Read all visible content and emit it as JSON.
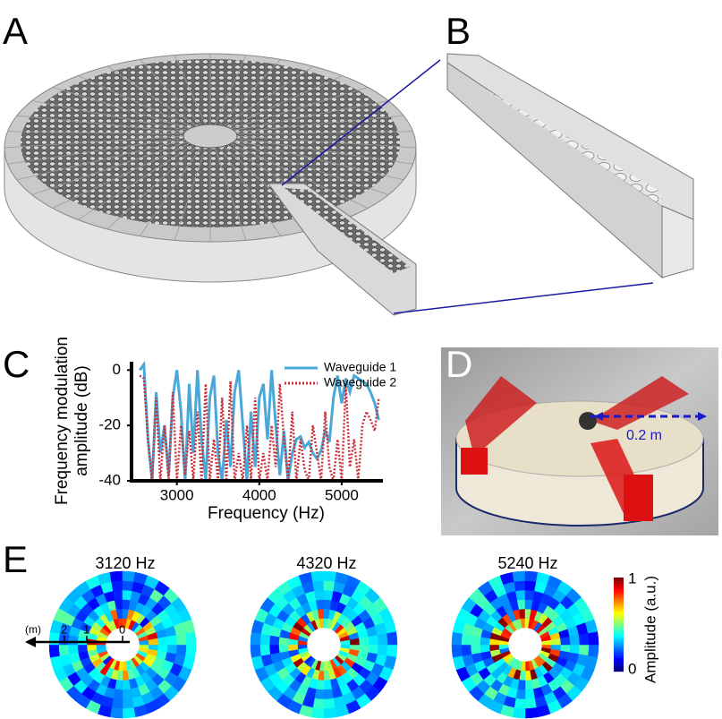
{
  "panel_labels": [
    "A",
    "B",
    "C",
    "D",
    "E"
  ],
  "chart_data": {
    "type": "line",
    "ylabel_lines": [
      "Frequency modulation",
      "amplitude (dB)"
    ],
    "xlabel": "Frequency (Hz)",
    "x": [
      2550,
      2600,
      2650,
      2700,
      2750,
      2800,
      2850,
      2900,
      2950,
      3000,
      3050,
      3100,
      3150,
      3200,
      3250,
      3300,
      3350,
      3400,
      3450,
      3500,
      3550,
      3600,
      3650,
      3700,
      3750,
      3800,
      3850,
      3900,
      3950,
      4000,
      4050,
      4100,
      4150,
      4200,
      4250,
      4300,
      4350,
      4400,
      4450,
      4500,
      4550,
      4600,
      4650,
      4700,
      4750,
      4800,
      4850,
      4900,
      4950,
      5000,
      5050,
      5100,
      5150,
      5200,
      5250,
      5300,
      5350,
      5400,
      5450
    ],
    "series": [
      {
        "name": "Waveguide 1",
        "color": "#4aa8d8",
        "style": "solid",
        "values": [
          0,
          2,
          -25,
          -40,
          -8,
          -30,
          -20,
          -38,
          -10,
          0,
          -15,
          -40,
          -5,
          -30,
          0,
          -25,
          -40,
          -10,
          -2,
          -30,
          -40,
          -18,
          -35,
          -8,
          0,
          -20,
          -40,
          -15,
          -35,
          -10,
          -5,
          -25,
          0,
          -20,
          -38,
          -22,
          -40,
          -30,
          -25,
          -24,
          -28,
          -26,
          -30,
          -32,
          -29,
          -22,
          -26,
          -10,
          -2,
          -12,
          -3,
          -8,
          -2,
          -3,
          -4,
          -5,
          -8,
          -12,
          -18
        ]
      },
      {
        "name": "Waveguide 2",
        "color": "#c8323c",
        "style": "dotted",
        "values": [
          -2,
          -3,
          -25,
          -40,
          -10,
          -40,
          -20,
          -40,
          -8,
          -40,
          -20,
          -38,
          -22,
          -40,
          -15,
          -40,
          -5,
          -40,
          -25,
          -40,
          -10,
          -40,
          -4,
          -40,
          -30,
          -40,
          -20,
          -40,
          -10,
          -40,
          -30,
          -40,
          -20,
          -35,
          -5,
          -25,
          -40,
          -15,
          -40,
          -25,
          -36,
          -40,
          -20,
          -30,
          -40,
          -15,
          -35,
          -40,
          -25,
          -40,
          -5,
          -35,
          -25,
          -40,
          -20,
          -15,
          -18,
          -22,
          -10
        ]
      }
    ],
    "xlim": [
      2450,
      5500
    ],
    "ylim": [
      -40,
      3
    ],
    "xticks": [
      3000,
      4000,
      5000
    ],
    "yticks": [
      0,
      -20,
      -40
    ]
  },
  "photo": {
    "scale_label": "0.2 m"
  },
  "maps": {
    "titles": [
      "3120 Hz",
      "4320 Hz",
      "5240 Hz"
    ],
    "axis_unit": "(m)",
    "axis_ticks": [
      "2",
      "1",
      "0"
    ],
    "colorbar": {
      "max_label": "1",
      "min_label": "0",
      "label": "Amplitude (a.u.)"
    }
  }
}
